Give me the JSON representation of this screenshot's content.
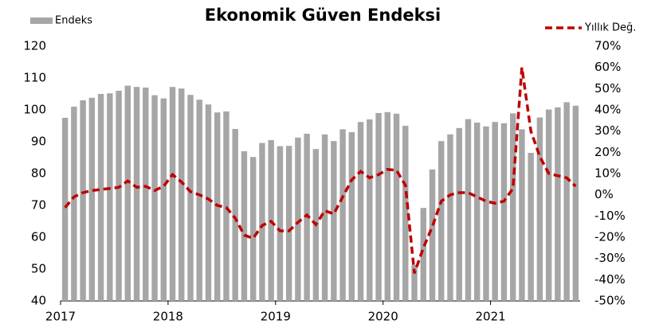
{
  "chart_data": {
    "type": "bar_line",
    "title": "Ekonomik Güven Endeksi",
    "categories": [
      "2017",
      null,
      null,
      null,
      null,
      null,
      null,
      null,
      null,
      null,
      null,
      null,
      "2018",
      null,
      null,
      null,
      null,
      null,
      null,
      null,
      null,
      null,
      null,
      null,
      "2019",
      null,
      null,
      null,
      null,
      null,
      null,
      null,
      null,
      null,
      null,
      null,
      "2020",
      null,
      null,
      null,
      null,
      null,
      null,
      null,
      null,
      null,
      null,
      null,
      "2021",
      null,
      null,
      null,
      null,
      null,
      null,
      null,
      null,
      null
    ],
    "series": [
      {
        "name": "Endeks",
        "color": "#a6a6a6",
        "kind": "bar",
        "axis": "y",
        "values": [
          97.5,
          101,
          103,
          103.8,
          105,
          105.2,
          106,
          107.6,
          107.2,
          107,
          104.6,
          103.6,
          107.2,
          106.7,
          104.7,
          103.2,
          101.7,
          99.2,
          99.5,
          94,
          87,
          85.2,
          89.6,
          90.5,
          88.6,
          88.7,
          91.3,
          92.5,
          87.7,
          92.3,
          90.2,
          93.9,
          93,
          96.2,
          97,
          99,
          99.3,
          98.8,
          95,
          51.3,
          69.2,
          81.3,
          90.2,
          92.3,
          94.3,
          97.1,
          96,
          94.8,
          96.2,
          95.8,
          98.9,
          93.9,
          86.5,
          97.6,
          100.1,
          100.8,
          102.4,
          101.3
        ]
      },
      {
        "name": "Yıllık Değ.",
        "color": "#c00000",
        "kind": "line",
        "axis": "y2",
        "values": [
          -6,
          -1,
          1,
          2,
          2.5,
          3,
          3.5,
          6.5,
          3.5,
          4,
          2,
          4,
          9.5,
          6,
          1.5,
          0,
          -2,
          -5,
          -6,
          -11,
          -19,
          -20.5,
          -14.5,
          -12.5,
          -17,
          -17,
          -13,
          -9.5,
          -14,
          -7.5,
          -9,
          -1,
          7,
          11,
          8,
          9.5,
          12,
          11.5,
          4.5,
          -37,
          -25,
          -15,
          -3,
          0,
          1,
          1,
          -1,
          -3,
          -4,
          -3,
          3,
          60,
          30,
          18,
          10,
          9,
          8,
          4
        ]
      }
    ],
    "ylim": [
      40,
      120
    ],
    "yticks": [
      40,
      50,
      60,
      70,
      80,
      90,
      100,
      110,
      120
    ],
    "y2lim": [
      -50,
      70
    ],
    "y2ticks": [
      {
        "value": -50,
        "label": "-50%"
      },
      {
        "value": -40,
        "label": "-40%"
      },
      {
        "value": -30,
        "label": "-30%"
      },
      {
        "value": -20,
        "label": "-20%"
      },
      {
        "value": -10,
        "label": "-10%"
      },
      {
        "value": 0,
        "label": "0%"
      },
      {
        "value": 10,
        "label": "10%"
      },
      {
        "value": 20,
        "label": "20%"
      },
      {
        "value": 30,
        "label": "30%"
      },
      {
        "value": 40,
        "label": "40%"
      },
      {
        "value": 50,
        "label": "50%"
      },
      {
        "value": 60,
        "label": "60%"
      },
      {
        "value": 70,
        "label": "70%"
      }
    ],
    "grid": false
  }
}
